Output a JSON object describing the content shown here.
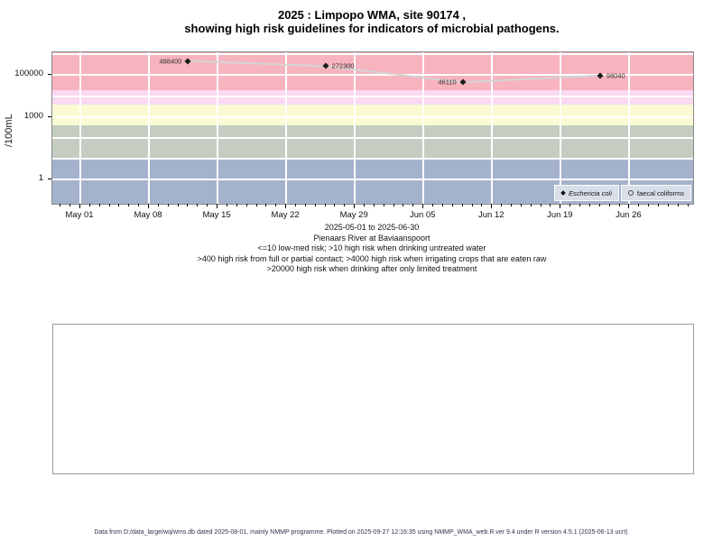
{
  "title": {
    "line1": "2025 : Limpopo WMA, site 90174 ,",
    "line2": "showing high risk guidelines for indicators of microbial pathogens."
  },
  "chart_data": {
    "type": "scatter",
    "title": "2025 : Limpopo WMA, site 90174 , showing high risk guidelines for indicators of microbial pathogens.",
    "ylabel": "/100mL",
    "y_scale": "log10",
    "ylog_domain": [
      -1.15,
      6.1
    ],
    "x_epoch": "2025-05-01",
    "x_domain_days": [
      -2.85,
      62.5
    ],
    "grid": "on",
    "legend_position": "bottom-right-inside",
    "y_ticks": [
      {
        "value": 100000,
        "label": "100000"
      },
      {
        "value": 1000,
        "label": "1000"
      },
      {
        "value": 1,
        "label": "1"
      }
    ],
    "grid_decades": [
      1,
      10,
      100,
      1000,
      10000,
      100000,
      1000000
    ],
    "x_ticks": [
      {
        "date": "2025-05-01",
        "label": "May 01"
      },
      {
        "date": "2025-05-08",
        "label": "May 08"
      },
      {
        "date": "2025-05-15",
        "label": "May 15"
      },
      {
        "date": "2025-05-22",
        "label": "May 22"
      },
      {
        "date": "2025-05-29",
        "label": "May 29"
      },
      {
        "date": "2025-06-05",
        "label": "Jun 05"
      },
      {
        "date": "2025-06-12",
        "label": "Jun 12"
      },
      {
        "date": "2025-06-19",
        "label": "Jun 19"
      },
      {
        "date": "2025-06-26",
        "label": "Jun 26"
      }
    ],
    "bands": [
      {
        "name": "high-risk-limited-treatment",
        "from": 20000,
        "to": null,
        "color": "#f7b3be"
      },
      {
        "name": "high-risk-irrigation",
        "from": 4000,
        "to": 20000,
        "color": "#fbd9f2"
      },
      {
        "name": "high-risk-contact",
        "from": 400,
        "to": 4000,
        "color": "#fafad4"
      },
      {
        "name": "high-risk-drinking-untreated",
        "from": 10,
        "to": 400,
        "color": "#c5cdc2"
      },
      {
        "name": "low-med-risk",
        "from": null,
        "to": 10,
        "color": "#a4b2cc"
      }
    ],
    "series": [
      {
        "name": "Eschericia coli",
        "marker": "diamond-filled",
        "marker_color": "#1c1c1c",
        "line_color": "#d4d4d4",
        "points": [
          {
            "date": "2025-05-12",
            "value": 488400,
            "label": "488400",
            "label_side": "left"
          },
          {
            "date": "2025-05-26",
            "value": 272300,
            "label": "272300",
            "label_side": "right"
          },
          {
            "date": "2025-06-09",
            "value": 46110,
            "label": "46110",
            "label_side": "left"
          },
          {
            "date": "2025-06-23",
            "value": 98040,
            "label": "98040",
            "label_side": "right"
          }
        ]
      },
      {
        "name": "faecal coliforms",
        "marker": "circle-open",
        "marker_color": "#444444",
        "points": []
      }
    ],
    "legend": [
      {
        "label": "Eschericia coli",
        "marker": "diamond-filled",
        "italic": true
      },
      {
        "label": "faecal coliforms",
        "marker": "circle-open",
        "italic": false
      }
    ],
    "caption_lines": [
      "2025-05-01 to 2025-06-30",
      "Pienaars River at Baviaanspoort",
      "<=10 low-med risk; >10 high risk when drinking untreated water",
      ">400 high risk from full or partial contact; >4000 high risk when irrigating crops that are eaten raw",
      ">20000 high risk when drinking after only limited treatment"
    ]
  },
  "footer": {
    "text": "Data from D:/data_large/wq/wms.db dated 2025-08-01, mainly NMMP programme. Plotted on 2025-09-27 12:16:35 using NMMP_WMA_web.R ver 9.4 under R version 4.5.1 (2025-06-13 ucrt)"
  }
}
